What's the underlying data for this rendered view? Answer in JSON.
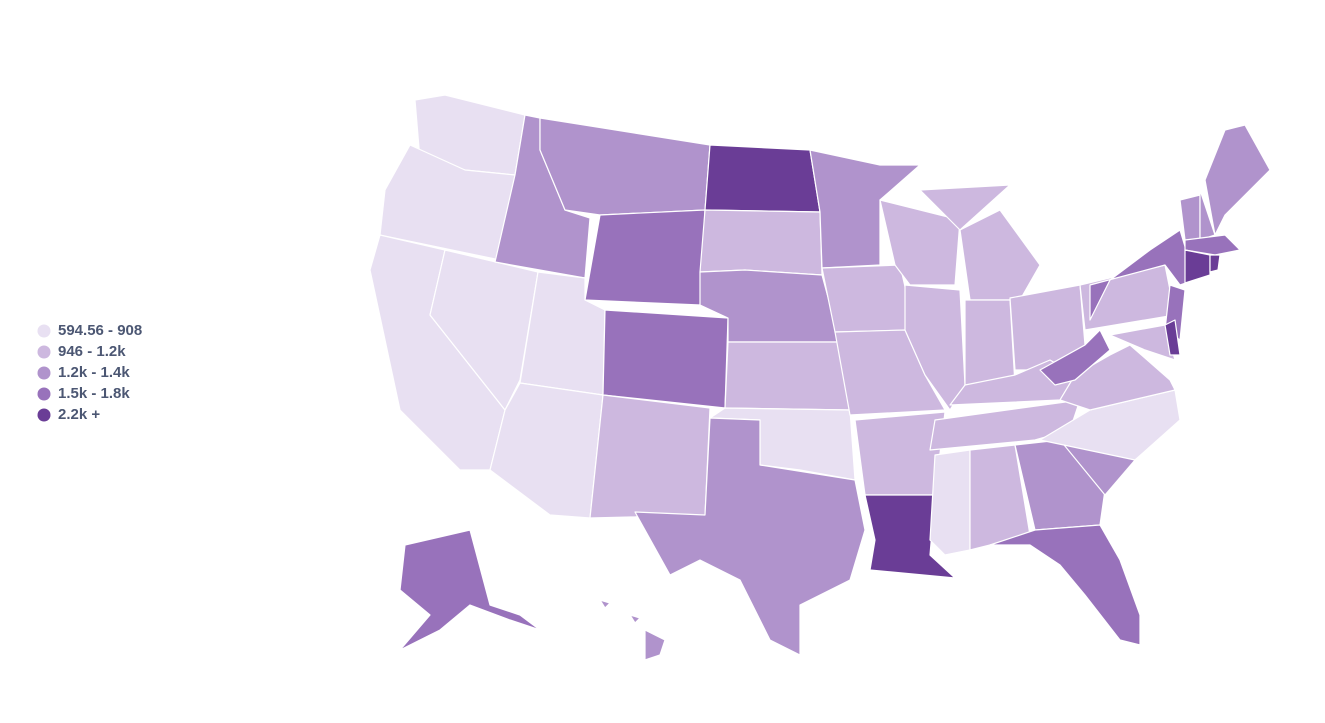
{
  "legend": {
    "items": [
      {
        "label": "594.56 - 908",
        "color": "#e8e0f2"
      },
      {
        "label": "946 - 1.2k",
        "color": "#cdb8df"
      },
      {
        "label": "1.2k - 1.4k",
        "color": "#b093cc"
      },
      {
        "label": "1.5k - 1.8k",
        "color": "#9872bb"
      },
      {
        "label": "2.2k +",
        "color": "#6a3d96"
      }
    ]
  }
}
